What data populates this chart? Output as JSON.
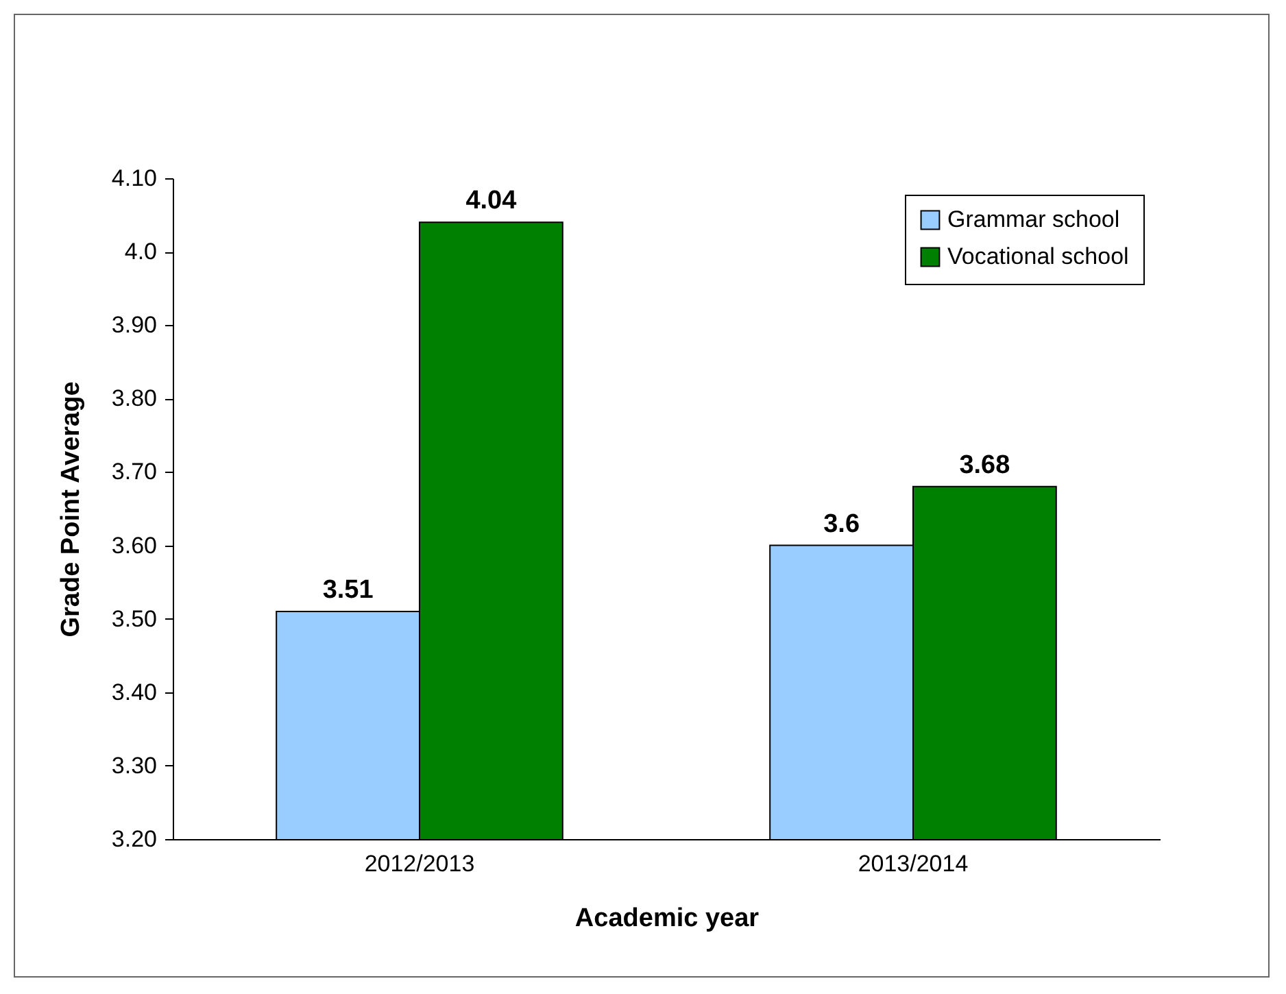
{
  "chart_data": {
    "type": "bar",
    "xlabel": "Academic year",
    "ylabel": "Grade Point Average",
    "categories": [
      "2012/2013",
      "2013/2014"
    ],
    "series": [
      {
        "name": "Grammar school",
        "color": "#99ccff",
        "values": [
          3.51,
          3.6
        ]
      },
      {
        "name": "Vocational school",
        "color": "#008000",
        "values": [
          4.04,
          3.68
        ]
      }
    ],
    "ylim": [
      3.2,
      4.1
    ],
    "yticks": [
      {
        "value": 3.2,
        "label": "3.20"
      },
      {
        "value": 3.3,
        "label": "3.30"
      },
      {
        "value": 3.4,
        "label": "3.40"
      },
      {
        "value": 3.5,
        "label": "3.50"
      },
      {
        "value": 3.6,
        "label": "3.60"
      },
      {
        "value": 3.7,
        "label": "3.70"
      },
      {
        "value": 3.8,
        "label": "3.80"
      },
      {
        "value": 3.9,
        "label": "3.90"
      },
      {
        "value": 4.0,
        "label": "4.0"
      },
      {
        "value": 4.1,
        "label": "4.10"
      }
    ],
    "data_labels": true,
    "legend": "top right",
    "grid": false
  }
}
